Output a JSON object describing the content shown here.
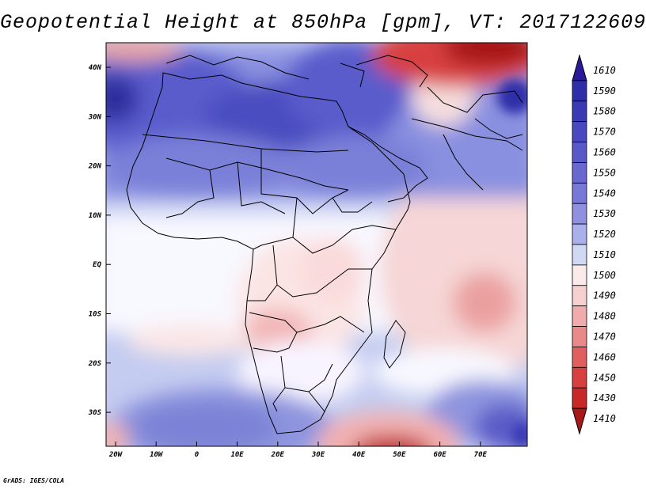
{
  "title": "Geopotential Height at 850hPa [gpm], VT: 2017122609",
  "footer": "GrADS: IGES/COLA",
  "map": {
    "variable": "Geopotential Height",
    "level": "850hPa",
    "units": "gpm",
    "valid_time": "2017122609",
    "lat_labels": [
      "40N",
      "30N",
      "20N",
      "10N",
      "EQ",
      "10S",
      "20S",
      "30S"
    ],
    "lon_labels": [
      "20W",
      "10W",
      "0",
      "10E",
      "20E",
      "30E",
      "40E",
      "50E",
      "60E",
      "70E"
    ]
  },
  "colorbar": {
    "labels": [
      "1610",
      "1590",
      "1580",
      "1570",
      "1560",
      "1550",
      "1540",
      "1530",
      "1520",
      "1510",
      "1500",
      "1490",
      "1480",
      "1470",
      "1460",
      "1450",
      "1430",
      "1410"
    ],
    "colors": [
      "#2a1a9a",
      "#2e2ea8",
      "#3a3ab4",
      "#4848c0",
      "#5858c8",
      "#6868d0",
      "#7878d8",
      "#9090e0",
      "#aab0ec",
      "#d0d8f4",
      "#fbeaea",
      "#f6cfcf",
      "#f0acac",
      "#e88a8a",
      "#e06060",
      "#d84040",
      "#c82828",
      "#a81818"
    ]
  }
}
